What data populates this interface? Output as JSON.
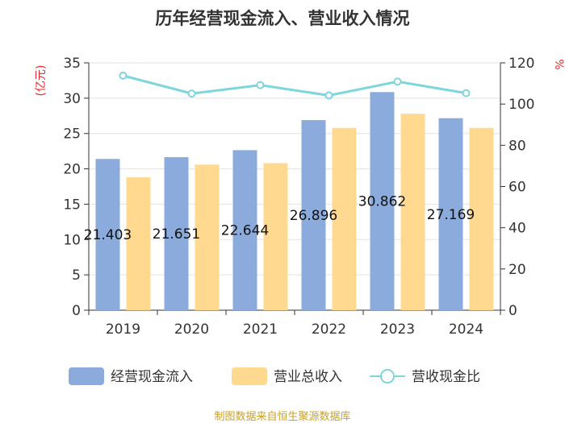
{
  "chart_data": {
    "type": "bar",
    "title": "历年经营现金流入、营业收入情况",
    "categories": [
      "2019",
      "2020",
      "2021",
      "2022",
      "2023",
      "2024"
    ],
    "series": [
      {
        "name": "经营现金流入",
        "kind": "bar",
        "axis": "left",
        "color": "#8aabdb",
        "values": [
          21.403,
          21.651,
          22.644,
          26.896,
          30.862,
          27.169
        ],
        "labels": [
          "21.403",
          "21.651",
          "22.644",
          "26.896",
          "30.862",
          "27.169"
        ]
      },
      {
        "name": "营业总收入",
        "kind": "bar",
        "axis": "left",
        "color": "#ffd98f",
        "values": [
          18.8,
          20.6,
          20.8,
          25.8,
          27.8,
          25.8
        ]
      },
      {
        "name": "营收现金比",
        "kind": "line",
        "axis": "right",
        "color": "#7dd6dc",
        "values": [
          113.8,
          105.1,
          109.2,
          104.2,
          110.9,
          105.3
        ]
      }
    ],
    "y_left": {
      "unit": "(亿元)",
      "min": 0,
      "max": 35,
      "ticks": [
        0,
        5,
        10,
        15,
        20,
        25,
        30,
        35
      ]
    },
    "y_right": {
      "unit": "%",
      "min": 0,
      "max": 120,
      "ticks": [
        0,
        20,
        40,
        60,
        80,
        100,
        120
      ]
    },
    "grid": true,
    "legend_position": "bottom"
  },
  "footer": {
    "source": "制图数据来自恒生聚源数据库"
  }
}
